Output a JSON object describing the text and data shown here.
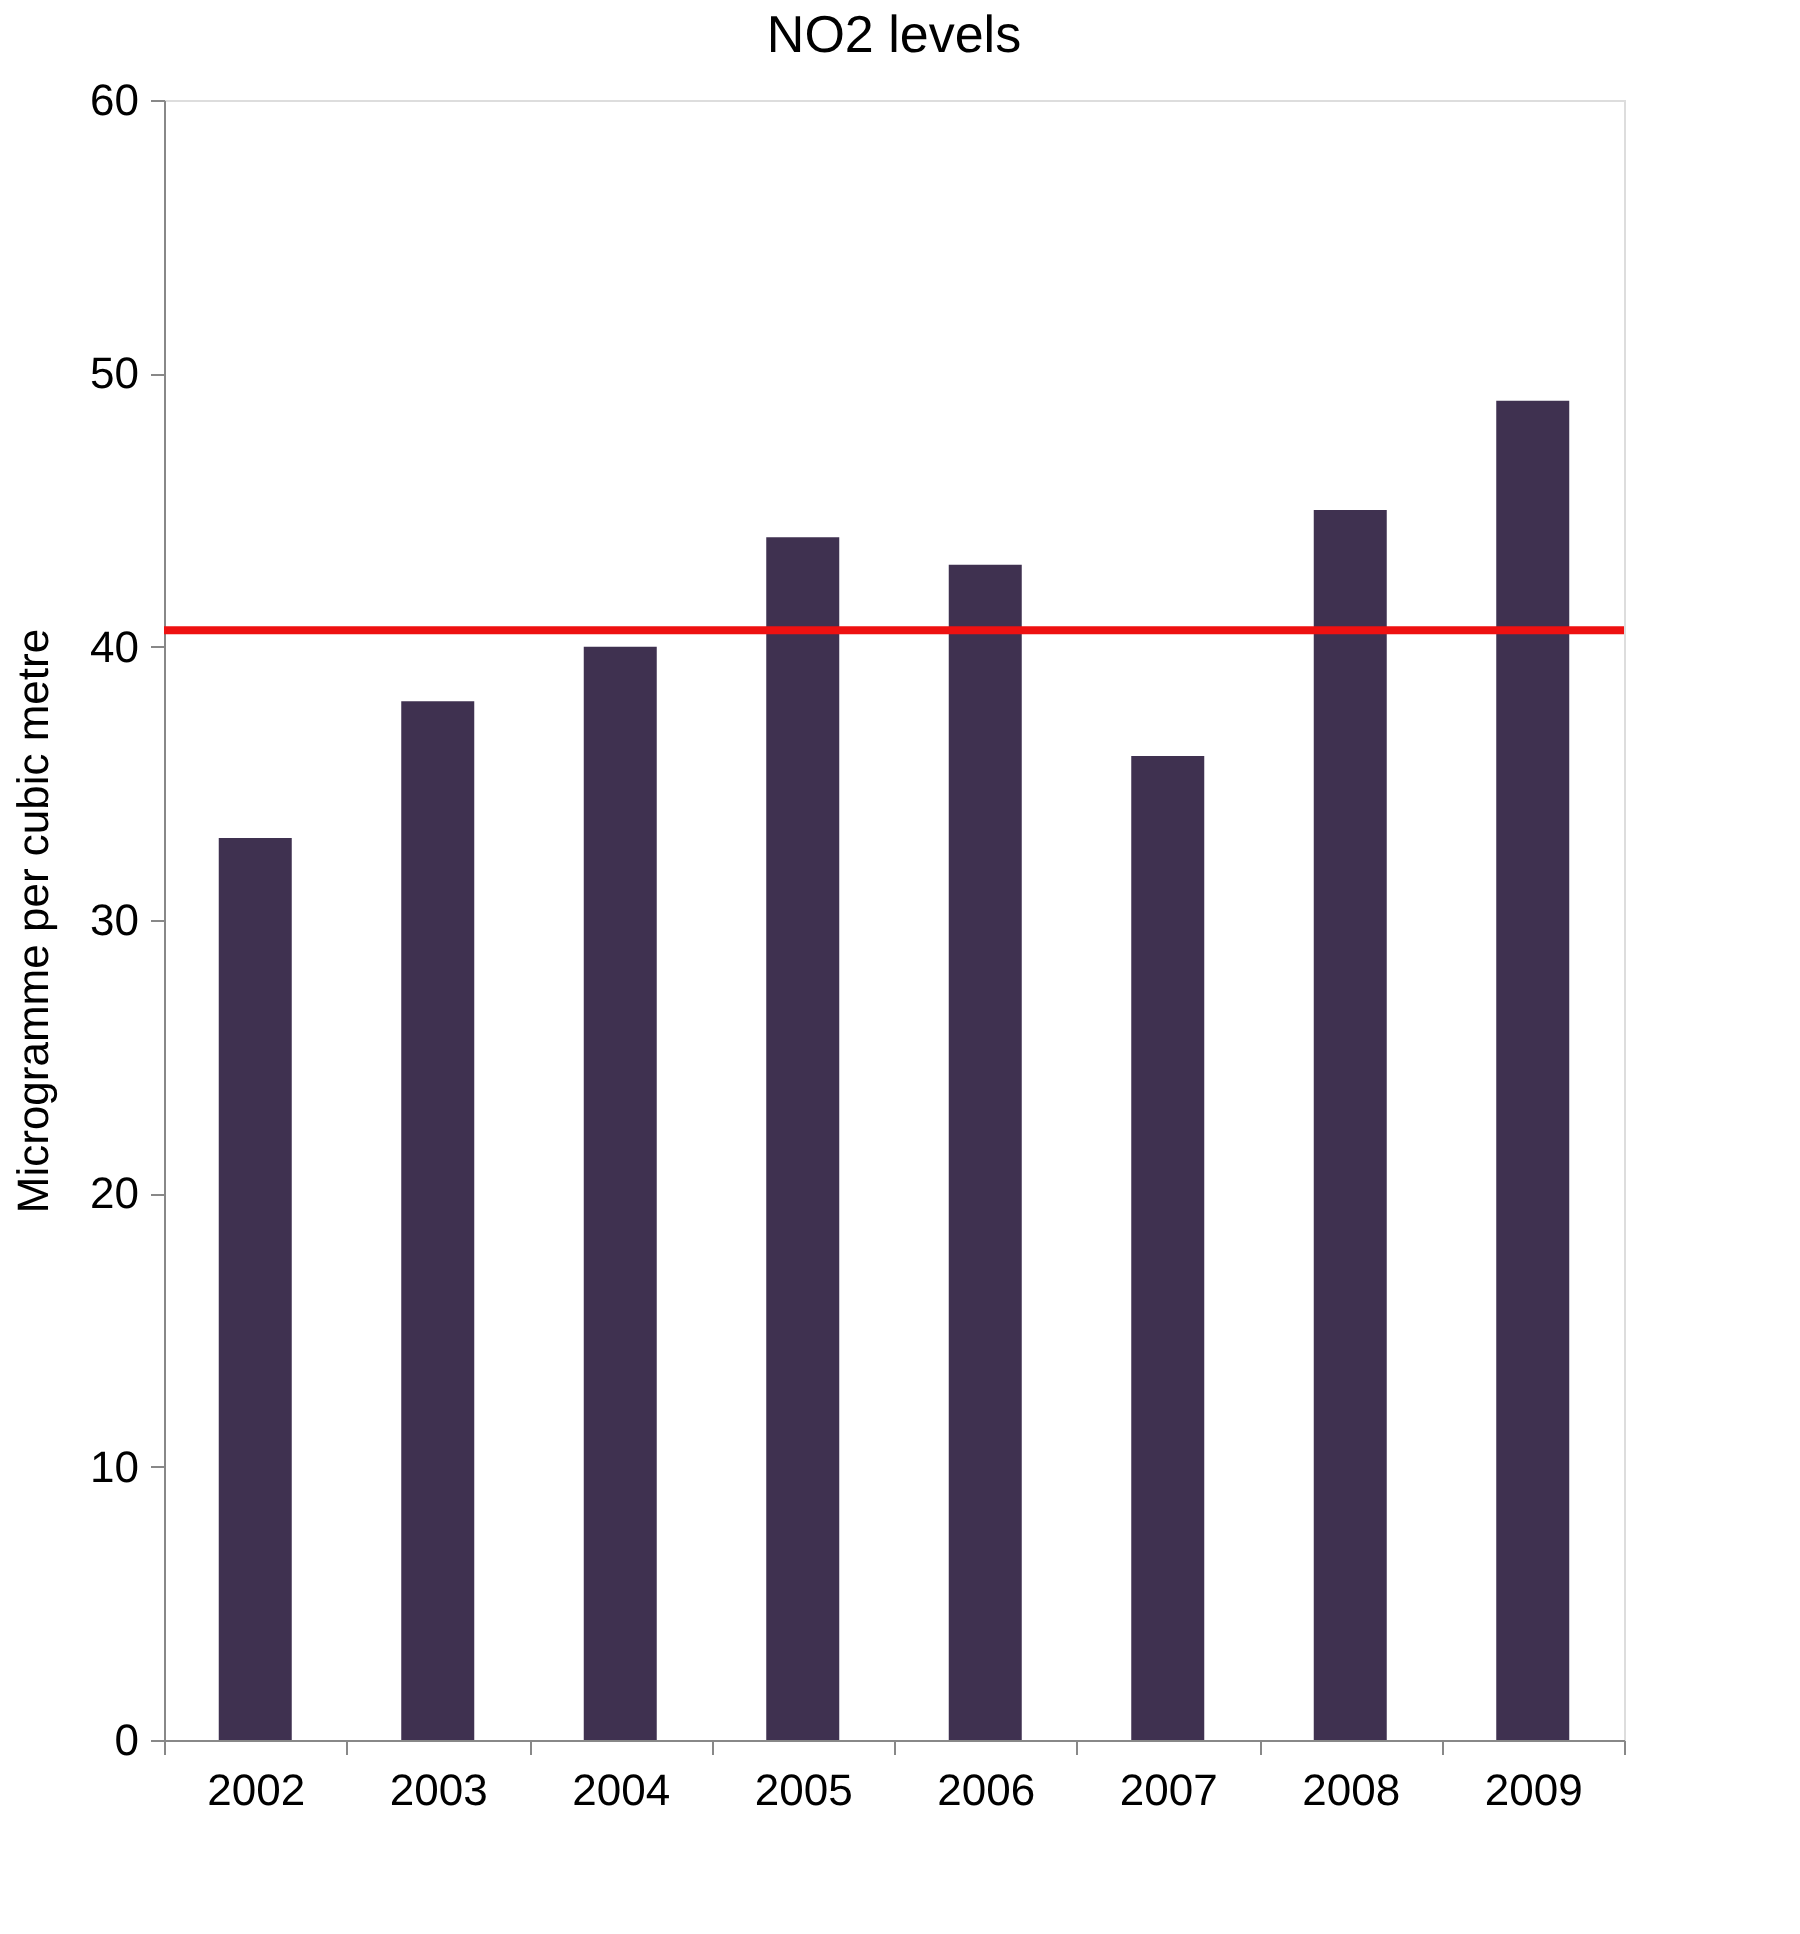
{
  "chart_data": {
    "type": "bar",
    "title": "NO2 levels",
    "ylabel": "Microgramme per cubic metre",
    "categories": [
      "2002",
      "2003",
      "2004",
      "2005",
      "2006",
      "2007",
      "2008",
      "2009"
    ],
    "values": [
      33,
      38,
      40,
      44,
      43,
      36,
      45,
      49
    ],
    "color": "#3f3150",
    "ylim": [
      0,
      60
    ],
    "yticks": [
      0,
      10,
      20,
      30,
      40,
      50,
      60
    ],
    "grid": false,
    "ref_lines": [
      {
        "axis": "y",
        "value": 40.6,
        "color": "#ee1111",
        "line_style": "solid"
      }
    ]
  }
}
